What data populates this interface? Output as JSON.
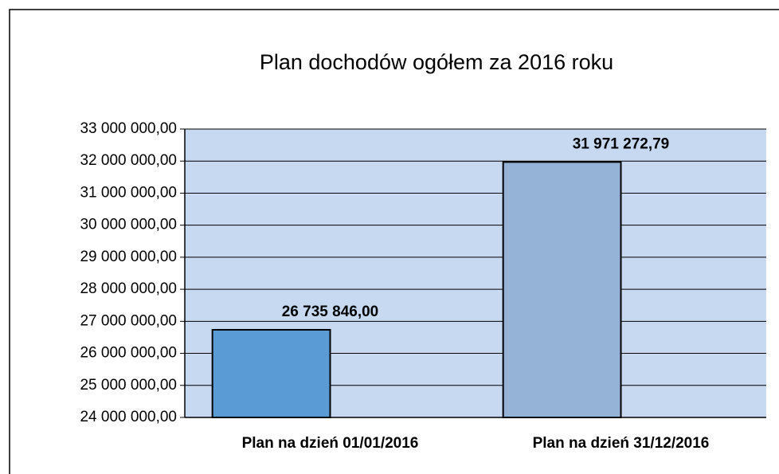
{
  "chart_data": {
    "type": "bar",
    "title": "Plan dochodów ogółem za 2016 roku",
    "categories": [
      "Plan na dzień 01/01/2016",
      "Plan na dzień 31/12/2016"
    ],
    "values": [
      26735846.0,
      31971272.79
    ],
    "value_labels": [
      "26 735 846,00",
      "31 971 272,79"
    ],
    "colors": [
      "#5b9bd5",
      "#95b3d7"
    ],
    "ylim": [
      24000000,
      33000000
    ],
    "yticks": [
      {
        "value": 24000000,
        "label": "24 000 000,00"
      },
      {
        "value": 25000000,
        "label": "25 000 000,00"
      },
      {
        "value": 26000000,
        "label": "26 000 000,00"
      },
      {
        "value": 27000000,
        "label": "27 000 000,00"
      },
      {
        "value": 28000000,
        "label": "28 000 000,00"
      },
      {
        "value": 29000000,
        "label": "29 000 000,00"
      },
      {
        "value": 30000000,
        "label": "30 000 000,00"
      },
      {
        "value": 31000000,
        "label": "31 000 000,00"
      },
      {
        "value": 32000000,
        "label": "32 000 000,00"
      },
      {
        "value": 33000000,
        "label": "33 000 000,00"
      }
    ],
    "grid": true
  }
}
